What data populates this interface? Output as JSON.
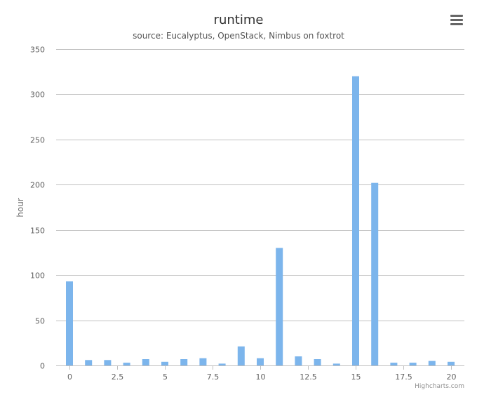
{
  "chart_data": {
    "type": "bar",
    "title": "runtime",
    "subtitle": "source: Eucalyptus, OpenStack, Nimbus on foxtrot",
    "xlabel": "",
    "ylabel": "hour",
    "x": [
      0,
      1,
      2,
      3,
      4,
      5,
      6,
      7,
      8,
      9,
      10,
      11,
      12,
      13,
      14,
      15,
      16,
      17,
      18,
      19,
      20
    ],
    "values": [
      93,
      6,
      6,
      3,
      7,
      4,
      7,
      8,
      2,
      21,
      8,
      130,
      10,
      7,
      2,
      320,
      202,
      3,
      3,
      5,
      4
    ],
    "xlim": [
      -0.7,
      20.7
    ],
    "ylim": [
      0,
      350
    ],
    "x_ticks": [
      0,
      2.5,
      5,
      7.5,
      10,
      12.5,
      15,
      17.5,
      20
    ],
    "x_tick_labels": [
      "0",
      "2.5",
      "5",
      "7.5",
      "10",
      "12.5",
      "15",
      "17.5",
      "20"
    ],
    "y_ticks": [
      0,
      50,
      100,
      150,
      200,
      250,
      300,
      350
    ],
    "y_tick_labels": [
      "0",
      "50",
      "100",
      "150",
      "200",
      "250",
      "300",
      "350"
    ],
    "grid": true,
    "legend": "none",
    "bar_color": "#7cb5ec",
    "grid_color": "#c0c0c0"
  },
  "credits": "Highcharts.com",
  "menu_icon": "hamburger-menu-icon"
}
